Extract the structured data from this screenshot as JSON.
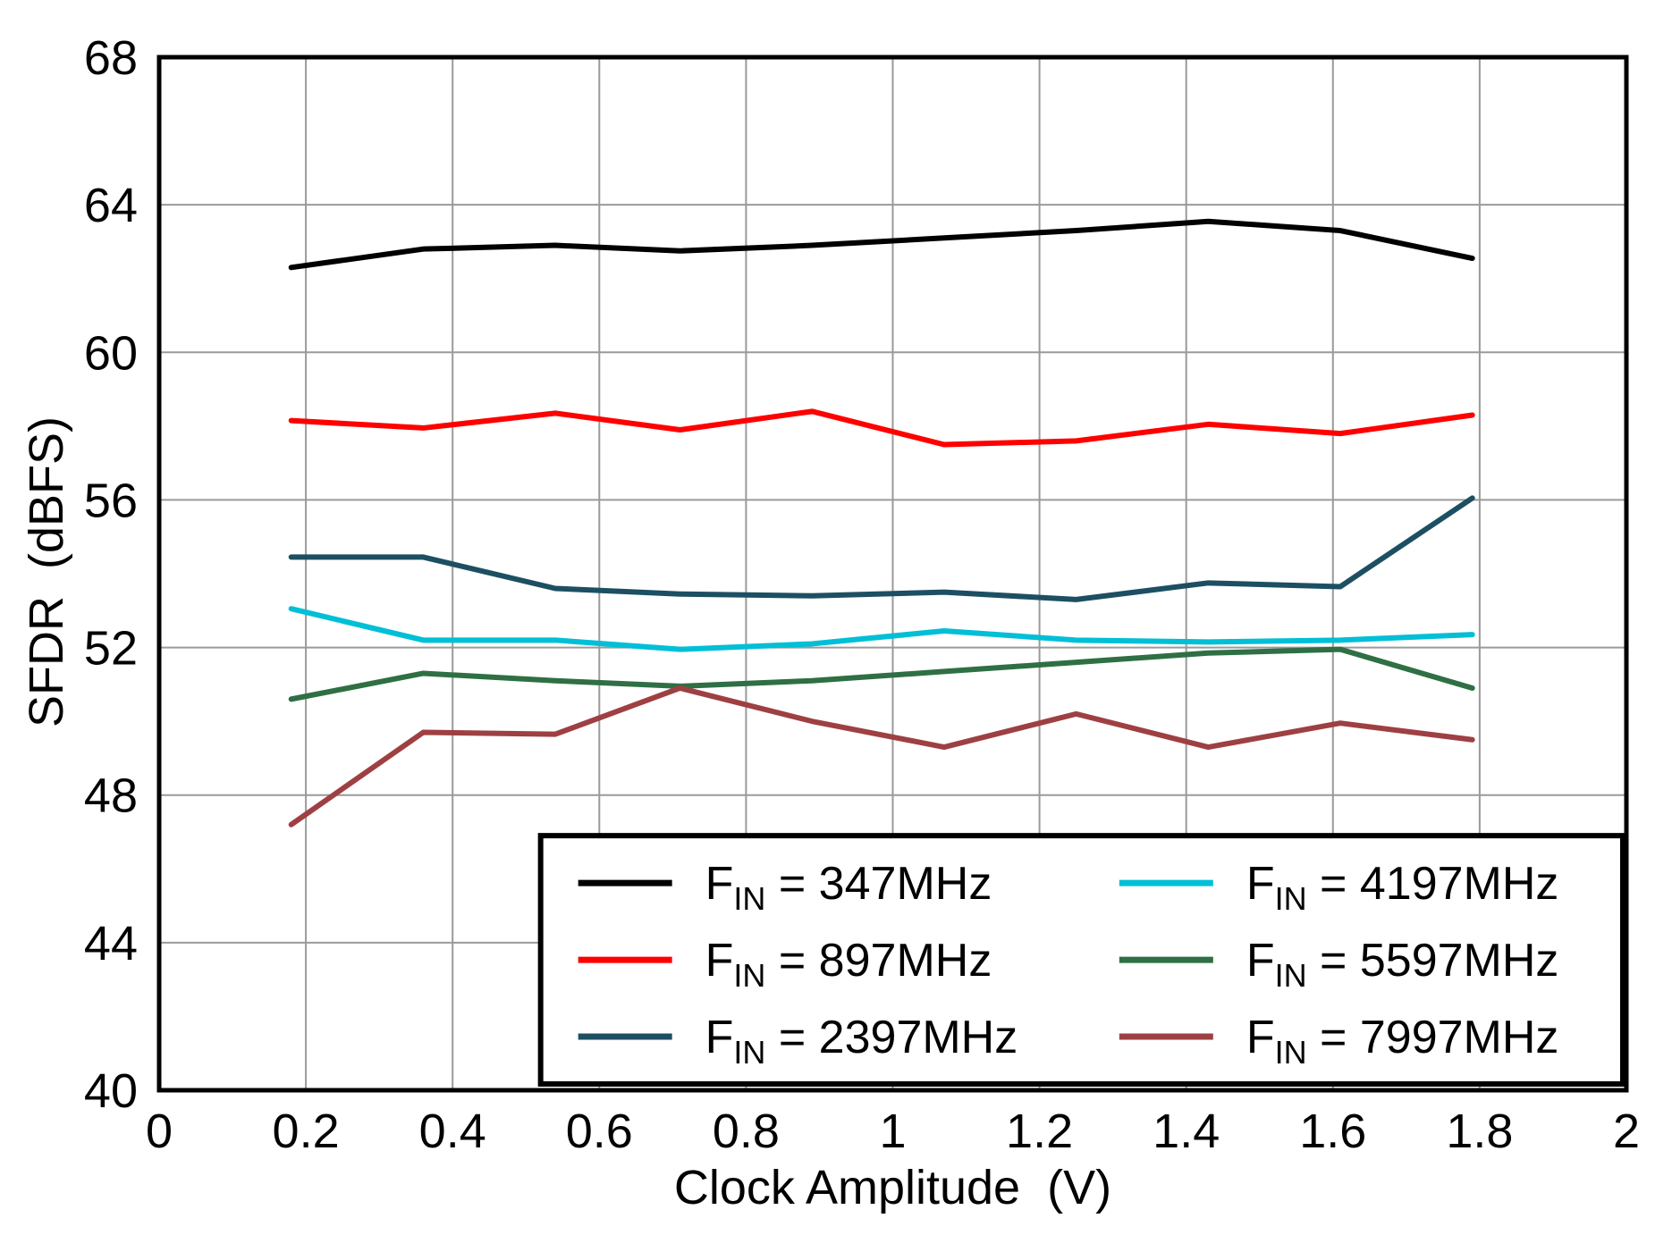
{
  "chart_data": {
    "type": "line",
    "title": "",
    "xlabel": "Clock Amplitude  (V)",
    "ylabel": "SFDR  (dBFS)",
    "xlim": [
      0,
      2
    ],
    "ylim": [
      40,
      68
    ],
    "x_ticks": [
      0,
      0.2,
      0.4,
      0.6,
      0.8,
      1,
      1.2,
      1.4,
      1.6,
      1.8,
      2
    ],
    "x_tick_labels": [
      "0",
      "0.2",
      "0.4",
      "0.6",
      "0.8",
      "1",
      "1.2",
      "1.4",
      "1.6",
      "1.8",
      "2"
    ],
    "y_ticks": [
      40,
      44,
      48,
      52,
      56,
      60,
      64,
      68
    ],
    "y_tick_labels": [
      "40",
      "44",
      "48",
      "52",
      "56",
      "60",
      "64",
      "68"
    ],
    "grid": true,
    "grid_color": "#9a9a9a",
    "axis_color": "#000000",
    "background_color": "#ffffff",
    "legend_position": "inside-bottom-right",
    "legend_columns": 2,
    "x": [
      0.18,
      0.36,
      0.54,
      0.71,
      0.89,
      1.07,
      1.25,
      1.43,
      1.61,
      1.79
    ],
    "series": [
      {
        "id": "fin-347mhz",
        "name": "FIN = 347MHz",
        "legend": {
          "pre": "F",
          "sub": "IN",
          "post": " = 347MHz"
        },
        "color": "#000000",
        "values": [
          62.3,
          62.8,
          62.9,
          62.75,
          62.9,
          63.1,
          63.3,
          63.55,
          63.3,
          62.55
        ]
      },
      {
        "id": "fin-897mhz",
        "name": "FIN = 897MHz",
        "legend": {
          "pre": "F",
          "sub": "IN",
          "post": " = 897MHz"
        },
        "color": "#ff0000",
        "values": [
          58.15,
          57.95,
          58.35,
          57.9,
          58.4,
          57.5,
          57.6,
          58.05,
          57.8,
          58.3
        ]
      },
      {
        "id": "fin-2397mhz",
        "name": "FIN = 2397MHz",
        "legend": {
          "pre": "F",
          "sub": "IN",
          "post": " = 2397MHz"
        },
        "color": "#1d4f63",
        "values": [
          54.45,
          54.45,
          53.6,
          53.45,
          53.4,
          53.5,
          53.3,
          53.75,
          53.65,
          56.05
        ]
      },
      {
        "id": "fin-4197mhz",
        "name": "FIN = 4197MHz",
        "legend": {
          "pre": "F",
          "sub": "IN",
          "post": " = 4197MHz"
        },
        "color": "#00bfd6",
        "values": [
          53.05,
          52.2,
          52.2,
          51.95,
          52.1,
          52.45,
          52.2,
          52.15,
          52.2,
          52.35
        ]
      },
      {
        "id": "fin-5597mhz",
        "name": "FIN = 5597MHz",
        "legend": {
          "pre": "F",
          "sub": "IN",
          "post": " = 5597MHz"
        },
        "color": "#2f6f44",
        "values": [
          50.6,
          51.3,
          51.1,
          50.95,
          51.1,
          51.35,
          51.6,
          51.85,
          51.95,
          50.9
        ]
      },
      {
        "id": "fin-7997mhz",
        "name": "FIN = 7997MHz",
        "legend": {
          "pre": "F",
          "sub": "IN",
          "post": " = 7997MHz"
        },
        "color": "#9e4043",
        "values": [
          47.2,
          49.7,
          49.65,
          50.9,
          50.0,
          49.3,
          50.2,
          49.3,
          49.95,
          49.5
        ]
      }
    ]
  }
}
